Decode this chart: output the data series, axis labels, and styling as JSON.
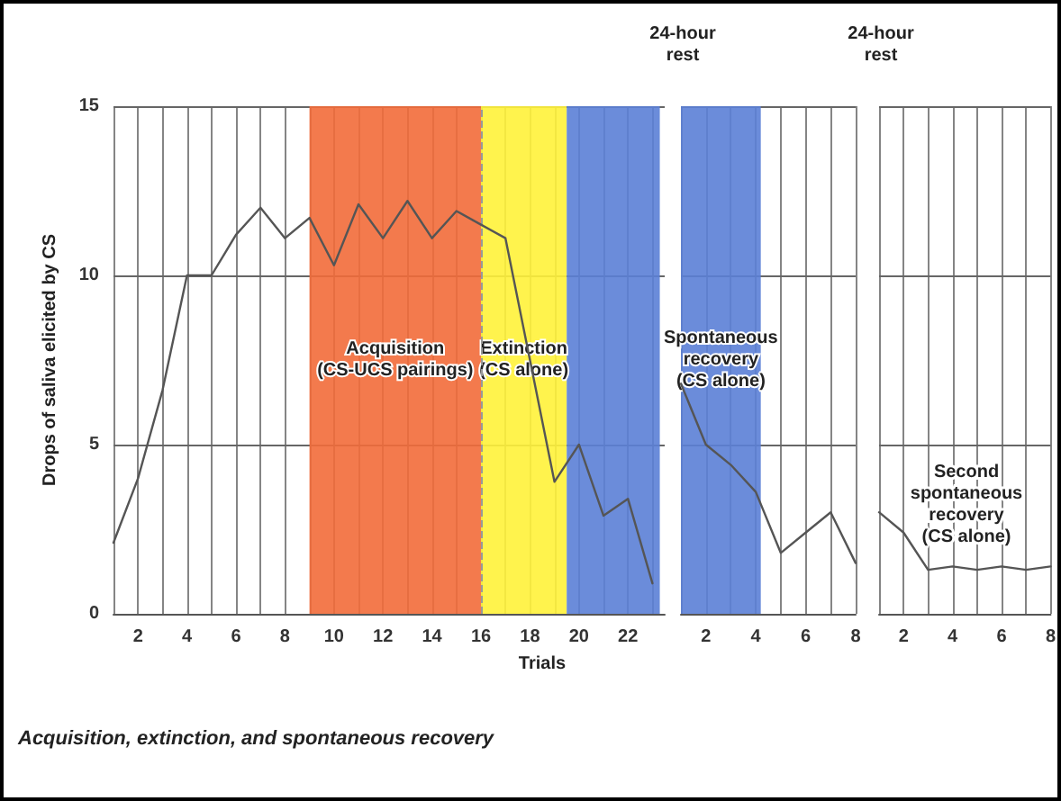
{
  "chart_data": [
    {
      "type": "line",
      "ylabel": "Drops of saliva elicited by CS",
      "xlabel": "Trials",
      "annotations": [
        "Acquisition, extinction, and spontaneous recovery"
      ],
      "x": [
        1,
        2,
        3,
        4,
        5,
        6,
        7,
        8,
        9,
        10,
        11,
        12,
        13,
        14,
        15,
        16,
        17,
        18,
        19,
        20,
        21,
        22,
        23
      ],
      "series": [
        {
          "color": "#555555",
          "values": [
            2.1,
            4.0,
            6.6,
            10.0,
            10.0,
            11.2,
            12.0,
            11.1,
            11.7,
            10.3,
            12.1,
            11.1,
            12.2,
            11.1,
            11.9,
            11.5,
            11.1,
            7.5,
            3.9,
            5.0,
            2.9,
            3.4,
            0.9
          ]
        }
      ],
      "xlim": [
        1,
        23.5
      ],
      "xticks": [
        {
          "value": 1,
          "label": null
        },
        2,
        {
          "value": 3,
          "label": null
        },
        4,
        {
          "value": 5,
          "label": null
        },
        6,
        {
          "value": 7,
          "label": null
        },
        8,
        {
          "value": 9,
          "label": null
        },
        10,
        {
          "value": 11,
          "label": null
        },
        12,
        {
          "value": 13,
          "label": null
        },
        14,
        {
          "value": 15,
          "label": null
        },
        16,
        {
          "value": 17,
          "label": null
        },
        18,
        {
          "value": 19,
          "label": null
        },
        20,
        {
          "value": 21,
          "label": null
        },
        22,
        {
          "value": 23,
          "label": null
        }
      ],
      "ylim": [
        0,
        15
      ],
      "yticks": [
        0,
        5,
        10,
        15
      ],
      "grid": true,
      "marker": "none",
      "line_style": "solid",
      "ref_lines": [
        {
          "axis": "x",
          "value": 16,
          "color": "#999999",
          "line_style": "dashed"
        }
      ],
      "bands": [
        {
          "axis": "x",
          "from": 9,
          "to": 16,
          "label": "Acquisition\n(CS-UCS pairings)",
          "color": "#f26b3a"
        },
        {
          "axis": "x",
          "from": 16,
          "to": 19.5,
          "label": "Extinction\n(CS alone)",
          "color": "#fff23a"
        },
        {
          "axis": "x",
          "from": 19.5,
          "to": 23.3,
          "color": "#5b7fd6"
        }
      ]
    },
    {
      "type": "line",
      "title": "24-hour\nrest",
      "x": [
        1,
        2,
        3,
        4,
        5,
        6,
        7,
        8
      ],
      "series": [
        {
          "color": "#555555",
          "values": [
            6.8,
            5.0,
            4.4,
            3.6,
            1.8,
            2.4,
            3.0,
            1.5
          ]
        }
      ],
      "xlim": [
        1,
        8
      ],
      "xticks": [
        {
          "value": 1,
          "label": null
        },
        2,
        {
          "value": 3,
          "label": null
        },
        4,
        {
          "value": 5,
          "label": null
        },
        6,
        {
          "value": 7,
          "label": null
        },
        8
      ],
      "ylim": [
        0,
        15
      ],
      "yticks": [
        0,
        5,
        10,
        15
      ],
      "tick_labels": "x",
      "grid": true,
      "marker": "none",
      "line_style": "solid",
      "bands": [
        {
          "axis": "x",
          "from": 1,
          "to": 4.2,
          "label": "Spontaneous\nrecovery\n(CS alone)",
          "color": "#5b7fd6"
        }
      ]
    },
    {
      "type": "line",
      "title": "24-hour\nrest",
      "annotations": [
        "Second\nspontaneous\nrecovery\n(CS alone)"
      ],
      "x": [
        1,
        2,
        3,
        4,
        5,
        6,
        7,
        8
      ],
      "series": [
        {
          "color": "#555555",
          "values": [
            3.0,
            2.4,
            1.3,
            1.4,
            1.3,
            1.4,
            1.3,
            1.4
          ]
        }
      ],
      "xlim": [
        1,
        8
      ],
      "xticks": [
        {
          "value": 1,
          "label": null
        },
        2,
        {
          "value": 3,
          "label": null
        },
        4,
        {
          "value": 5,
          "label": null
        },
        6,
        {
          "value": 7,
          "label": null
        },
        8
      ],
      "ylim": [
        0,
        15
      ],
      "yticks": [
        0,
        5,
        10,
        15
      ],
      "tick_labels": "x",
      "grid": true,
      "marker": "none",
      "line_style": "solid"
    }
  ]
}
